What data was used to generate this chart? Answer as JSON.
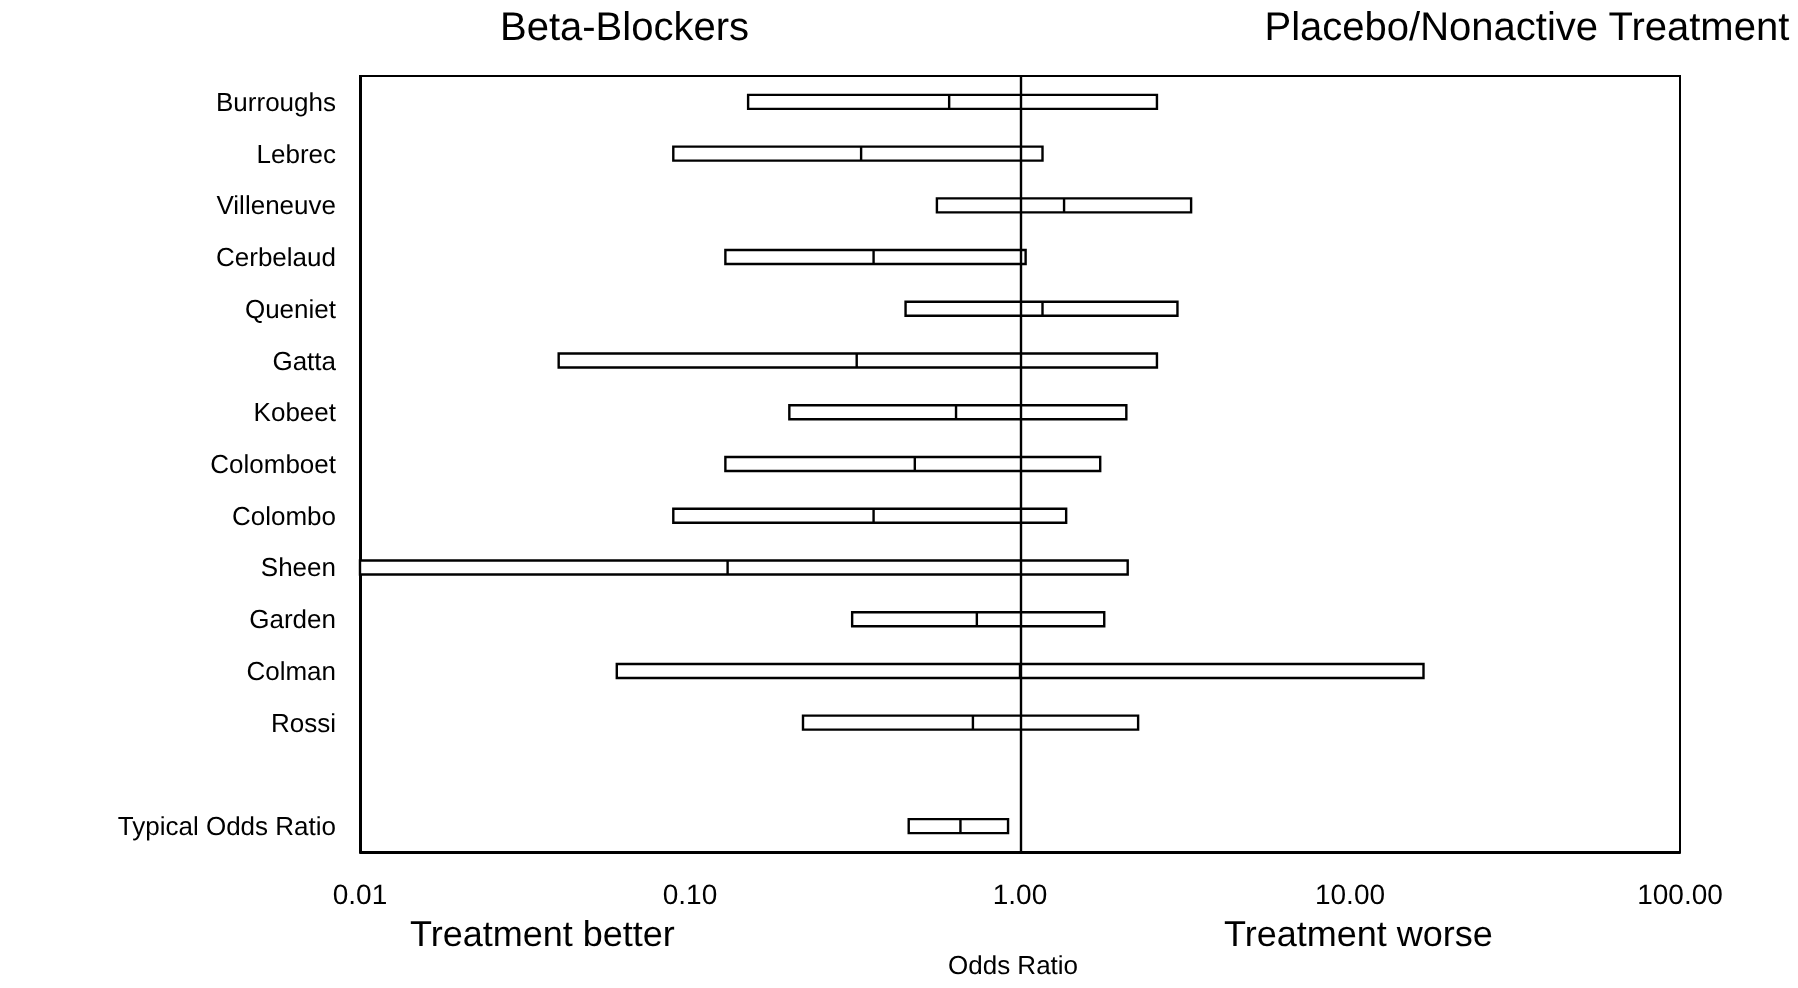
{
  "chart_data": {
    "type": "box",
    "orientation": "horizontal",
    "categories": [
      "Burroughs",
      "Lebrec",
      "Villeneuve",
      "Cerbelaud",
      "Queniet",
      "Gatta",
      "Kobeet",
      "Colomboet",
      "Colombo",
      "Sheen",
      "Garden",
      "Colman",
      "Rossi",
      null,
      "Typical Odds Ratio"
    ],
    "boxes": [
      {
        "low": 0.15,
        "q1": 0.15,
        "median": 0.61,
        "q3": 2.6,
        "high": 2.6
      },
      {
        "low": 0.089,
        "q1": 0.089,
        "median": 0.33,
        "q3": 1.17,
        "high": 1.17
      },
      {
        "low": 0.56,
        "q1": 0.56,
        "median": 1.36,
        "q3": 3.3,
        "high": 3.3
      },
      {
        "low": 0.128,
        "q1": 0.128,
        "median": 0.36,
        "q3": 1.04,
        "high": 1.04
      },
      {
        "low": 0.45,
        "q1": 0.45,
        "median": 1.17,
        "q3": 3.0,
        "high": 3.0
      },
      {
        "low": 0.04,
        "q1": 0.04,
        "median": 0.32,
        "q3": 2.6,
        "high": 2.6
      },
      {
        "low": 0.2,
        "q1": 0.2,
        "median": 0.64,
        "q3": 2.1,
        "high": 2.1
      },
      {
        "low": 0.128,
        "q1": 0.128,
        "median": 0.48,
        "q3": 1.75,
        "high": 1.75
      },
      {
        "low": 0.089,
        "q1": 0.089,
        "median": 0.36,
        "q3": 1.38,
        "high": 1.38
      },
      {
        "low": 0.01,
        "q1": 0.01,
        "median": 0.13,
        "q3": 2.12,
        "high": 2.12
      },
      {
        "low": 0.31,
        "q1": 0.31,
        "median": 0.74,
        "q3": 1.8,
        "high": 1.8
      },
      {
        "low": 0.06,
        "q1": 0.06,
        "median": 1.0,
        "q3": 16.7,
        "high": 16.7
      },
      {
        "low": 0.22,
        "q1": 0.22,
        "median": 0.72,
        "q3": 2.28,
        "high": 2.28
      },
      null,
      {
        "low": 0.46,
        "q1": 0.46,
        "median": 0.66,
        "q3": 0.92,
        "high": 0.92
      }
    ],
    "color": "#000000",
    "log": "x",
    "xlim": [
      0.01,
      100
    ],
    "xticks": [
      {
        "value": 0.01,
        "label": "0.01"
      },
      {
        "value": 0.1,
        "label": "0.10"
      },
      {
        "value": 1,
        "label": "1.00"
      },
      {
        "value": 10,
        "label": "10.00"
      },
      {
        "value": 100,
        "label": "100.00"
      }
    ],
    "xlabel": "Odds Ratio",
    "ref_lines": [
      {
        "axis": "x",
        "value": 1,
        "label": null,
        "color": "#000000"
      }
    ],
    "annotations": [
      "Beta-Blockers",
      "Placebo/Nonactive Treatment",
      "Treatment better",
      "Treatment worse"
    ],
    "grid": false
  }
}
